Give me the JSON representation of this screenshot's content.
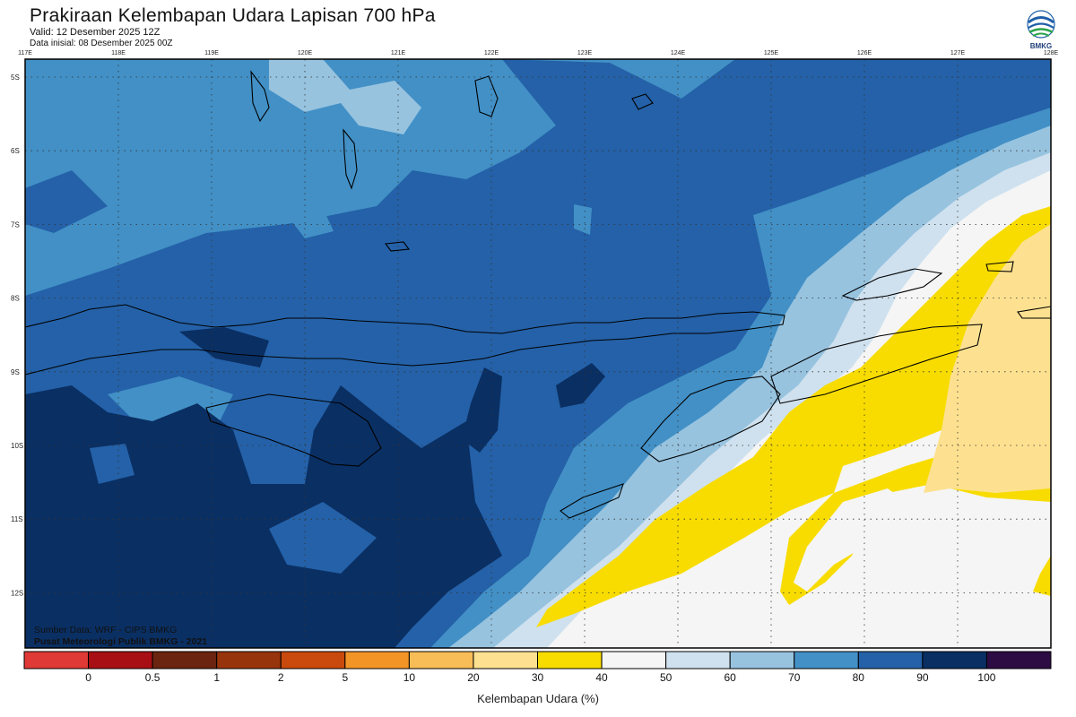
{
  "header": {
    "title": "Prakiraan Kelembapan Udara Lapisan 700 hPa",
    "valid": "Valid: 12 Desember 2025 12Z",
    "init": "Data inisial: 08 Desember 2025 00Z",
    "logo_text": "BMKG"
  },
  "map": {
    "lon_labels": [
      "117E",
      "118E",
      "119E",
      "120E",
      "121E",
      "122E",
      "123E",
      "124E",
      "125E",
      "126E",
      "127E",
      "128E"
    ],
    "lat_labels": [
      "5S",
      "6S",
      "7S",
      "8S",
      "9S",
      "10S",
      "11S",
      "12S"
    ],
    "credit_source": "Sumber Data: WRF - CIPS BMKG",
    "credit_org": "Pusat Meteorologi Publik BMKG - 2021"
  },
  "colorbar": {
    "title": "Kelembapan Udara (%)",
    "ticks": [
      "0",
      "0.5",
      "1",
      "2",
      "5",
      "10",
      "20",
      "30",
      "40",
      "50",
      "60",
      "70",
      "80",
      "90",
      "100"
    ],
    "colors": [
      "#e03a36",
      "#a80f14",
      "#6b2410",
      "#98340c",
      "#c94a0c",
      "#f39427",
      "#f8bd57",
      "#fde190",
      "#f8dc00",
      "#f5f5f5",
      "#cfe1ee",
      "#97c3df",
      "#4290c6",
      "#2461a8",
      "#0a2f63",
      "#2c0c43"
    ]
  },
  "colors": {
    "rh_30_40": "#fde190",
    "rh_40_50": "#f8dc00",
    "rh_50_60": "#f5f5f5",
    "rh_60_70": "#cfe1ee",
    "rh_70_80": "#97c3df",
    "rh_80_90": "#4290c6",
    "rh_90_100": "#2461a8",
    "rh_100": "#0a2f63"
  }
}
